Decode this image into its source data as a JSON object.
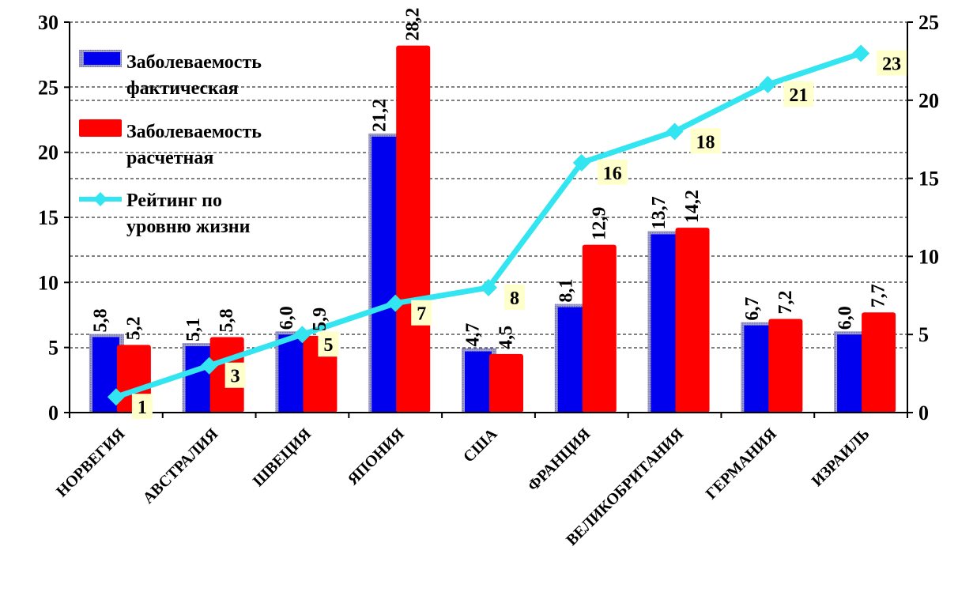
{
  "chart_data": {
    "type": "bar+line",
    "categories": [
      "НОРВЕГИЯ",
      "АВСТРАЛИЯ",
      "ШВЕЦИЯ",
      "ЯПОНИЯ",
      "США",
      "ФРАНЦИЯ",
      "ВЕЛИКОБРИТАНИЯ",
      "ГЕРМАНИЯ",
      "ИЗРАИЛЬ"
    ],
    "series": [
      {
        "name": "Заболеваемость фактическая",
        "type": "bar",
        "axis": "left",
        "color": "#0000ee",
        "values": [
          5.8,
          5.1,
          6.0,
          21.2,
          4.7,
          8.1,
          13.7,
          6.7,
          6.0
        ],
        "labels": [
          "5,8",
          "5,1",
          "6,0",
          "21,2",
          "4,7",
          "8,1",
          "13,7",
          "6,7",
          "6,0"
        ]
      },
      {
        "name": "Заболеваемость расчетная",
        "type": "bar",
        "axis": "left",
        "color": "#ff0000",
        "values": [
          5.2,
          5.8,
          5.9,
          28.2,
          4.5,
          12.9,
          14.2,
          7.2,
          7.7
        ],
        "labels": [
          "5,2",
          "5,8",
          "5,9",
          "28,2",
          "4,5",
          "12,9",
          "14,2",
          "7,2",
          "7,7"
        ]
      },
      {
        "name": "Рейтинг по уровню жизни",
        "type": "line",
        "axis": "right",
        "color": "#33e5f0",
        "values": [
          1,
          3,
          5,
          7,
          8,
          16,
          18,
          21,
          23
        ],
        "labels": [
          "1",
          "3",
          "5",
          "7",
          "8",
          "16",
          "18",
          "21",
          "23"
        ]
      }
    ],
    "y_left": {
      "lim": [
        0,
        30
      ],
      "ticks": [
        "0",
        "5",
        "10",
        "15",
        "20",
        "25",
        "30"
      ]
    },
    "y_right": {
      "lim": [
        0,
        25
      ],
      "ticks": [
        "0",
        "5",
        "10",
        "15",
        "20",
        "25"
      ]
    },
    "legend": {
      "placement": "top-left",
      "items": [
        [
          "Заболеваемость",
          "фактическая"
        ],
        [
          "Заболеваемость",
          "расчетная"
        ],
        [
          "Рейтинг по",
          "уровню жизни"
        ]
      ]
    },
    "grid": "dashed horizontal"
  }
}
